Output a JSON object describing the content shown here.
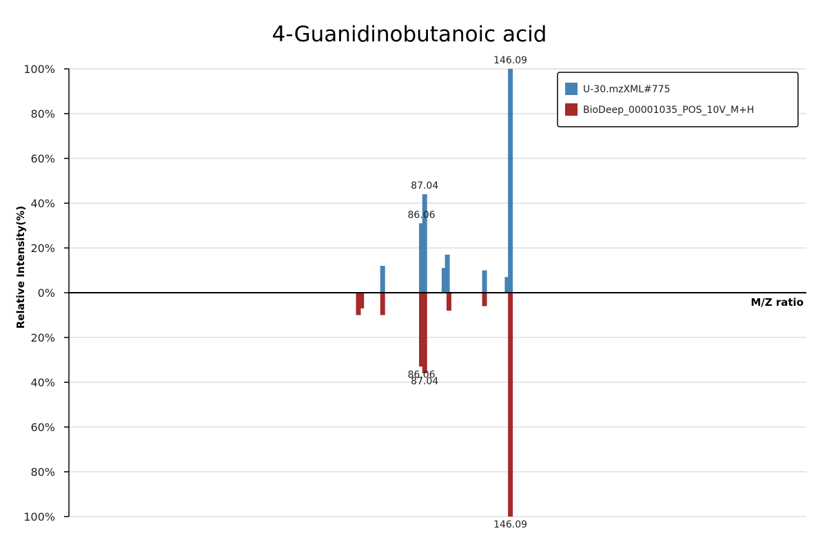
{
  "chart_data": {
    "type": "bar",
    "subtype": "mirror-spectrum",
    "title": "4-Guanidinobutanoic acid",
    "xlabel": "M/Z ratio",
    "ylabel": "Relative Intensity(%)",
    "ylim": [
      -100,
      100
    ],
    "xlim": [
      0,
      228
    ],
    "yticks": [
      100,
      80,
      60,
      40,
      20,
      0,
      20,
      40,
      60,
      80,
      100
    ],
    "tick_suffix": "%",
    "grid": true,
    "legend_position": "top-right",
    "series": [
      {
        "name": "U-30.mzXML#775",
        "color": "#4682b4",
        "direction": "up",
        "peaks": [
          {
            "mz": 97.0,
            "intensity": 12
          },
          {
            "mz": 109.0,
            "intensity": 31
          },
          {
            "mz": 110.0,
            "intensity": 44
          },
          {
            "mz": 116.0,
            "intensity": 11
          },
          {
            "mz": 117.0,
            "intensity": 17
          },
          {
            "mz": 128.5,
            "intensity": 10
          },
          {
            "mz": 135.5,
            "intensity": 7
          },
          {
            "mz": 136.5,
            "intensity": 100
          }
        ],
        "labels": [
          {
            "text": "87.04",
            "mz": 110.0,
            "intensity": 44
          },
          {
            "text": "86.06",
            "mz": 109.0,
            "intensity": 31
          },
          {
            "text": "146.09",
            "mz": 136.5,
            "intensity": 100
          }
        ]
      },
      {
        "name": "BioDeep_00001035_POS_10V_M+H",
        "color": "#a52a2a",
        "direction": "down",
        "peaks": [
          {
            "mz": 89.5,
            "intensity": 10
          },
          {
            "mz": 90.5,
            "intensity": 7
          },
          {
            "mz": 97.0,
            "intensity": 10
          },
          {
            "mz": 109.0,
            "intensity": 33
          },
          {
            "mz": 110.0,
            "intensity": 36
          },
          {
            "mz": 117.5,
            "intensity": 8
          },
          {
            "mz": 128.5,
            "intensity": 6
          },
          {
            "mz": 136.5,
            "intensity": 100
          }
        ],
        "labels": [
          {
            "text": "86.06",
            "mz": 109.0,
            "intensity": 33
          },
          {
            "text": "87.04",
            "mz": 110.0,
            "intensity": 36
          },
          {
            "text": "146.09",
            "mz": 136.5,
            "intensity": 100
          }
        ]
      }
    ]
  }
}
